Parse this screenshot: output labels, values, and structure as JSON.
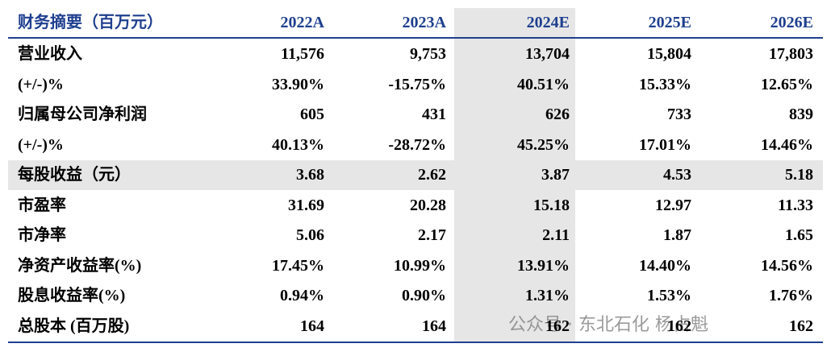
{
  "table": {
    "header": [
      "财务摘要（百万元）",
      "2022A",
      "2023A",
      "2024E",
      "2025E",
      "2026E"
    ],
    "rows": [
      [
        "营业收入",
        "11,576",
        "9,753",
        "13,704",
        "15,804",
        "17,803"
      ],
      [
        "(+/-)%",
        "33.90%",
        "-15.75%",
        "40.51%",
        "15.33%",
        "12.65%"
      ],
      [
        "归属母公司净利润",
        "605",
        "431",
        "626",
        "733",
        "839"
      ],
      [
        "(+/-)%",
        "40.13%",
        "-28.72%",
        "45.25%",
        "17.01%",
        "14.46%"
      ],
      [
        "每股收益（元）",
        "3.68",
        "2.62",
        "3.87",
        "4.53",
        "5.18"
      ],
      [
        "市盈率",
        "31.69",
        "20.28",
        "15.18",
        "12.97",
        "11.33"
      ],
      [
        "市净率",
        "5.06",
        "2.17",
        "2.11",
        "1.87",
        "1.65"
      ],
      [
        "净资产收益率(%)",
        "17.45%",
        "10.99%",
        "13.91%",
        "14.40%",
        "14.56%"
      ],
      [
        "股息收益率(%)",
        "0.94%",
        "0.90%",
        "1.31%",
        "1.53%",
        "1.76%"
      ],
      [
        "总股本 (百万股)",
        "164",
        "164",
        "162",
        "162",
        "162"
      ]
    ]
  },
  "watermark": "公众号 · 东北石化 杨占魁"
}
